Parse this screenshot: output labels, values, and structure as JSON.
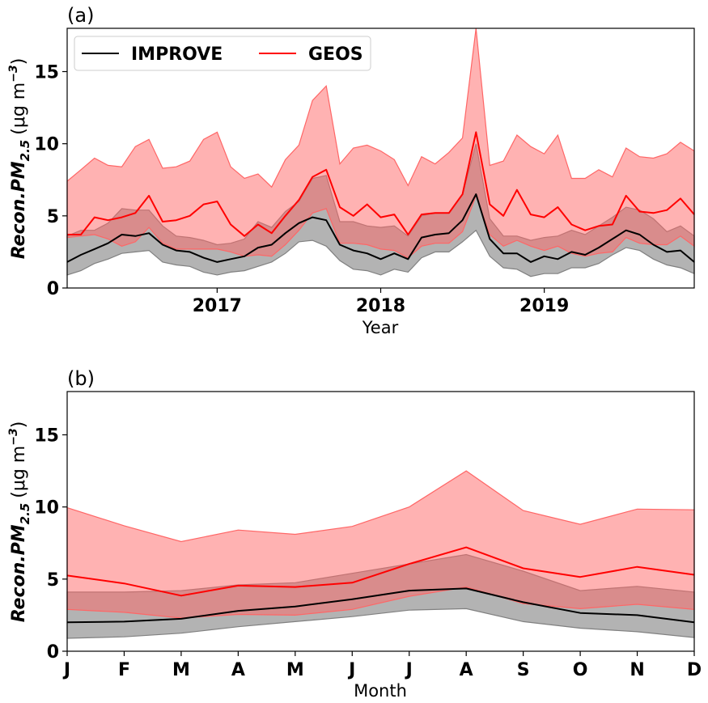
{
  "colors": {
    "improve": "#000000",
    "geos": "#ff0000",
    "improve_band": "#808080",
    "geos_band": "#ff6666"
  },
  "chart_data": [
    {
      "type": "line",
      "panel_label": "(a)",
      "xlabel": "Year",
      "ylabel_main": "Recon.PM",
      "ylabel_sub": "2.5",
      "ylabel_units_open": "(μg m",
      "ylabel_units_sup": "−3",
      "ylabel_units_close": ")",
      "ylim": [
        0,
        18
      ],
      "yticks": [
        0,
        5,
        10,
        15
      ],
      "xlim": [
        2016.083,
        2019.917
      ],
      "xticks": [
        2017,
        2018,
        2019
      ],
      "xtick_labels": [
        "2017",
        "2018",
        "2019"
      ],
      "legend": {
        "position": "top-left",
        "entries": [
          "IMPROVE",
          "GEOS"
        ]
      },
      "x": [
        2016.083,
        2016.167,
        2016.25,
        2016.333,
        2016.417,
        2016.5,
        2016.583,
        2016.667,
        2016.75,
        2016.833,
        2016.917,
        2017.0,
        2017.083,
        2017.167,
        2017.25,
        2017.333,
        2017.417,
        2017.5,
        2017.583,
        2017.667,
        2017.75,
        2017.833,
        2017.917,
        2018.0,
        2018.083,
        2018.167,
        2018.25,
        2018.333,
        2018.417,
        2018.5,
        2018.583,
        2018.667,
        2018.75,
        2018.833,
        2018.917,
        2019.0,
        2019.083,
        2019.167,
        2019.25,
        2019.333,
        2019.417,
        2019.5,
        2019.583,
        2019.667,
        2019.75,
        2019.833,
        2019.917
      ],
      "series": [
        {
          "name": "IMPROVE",
          "values": [
            1.8,
            2.3,
            2.7,
            3.1,
            3.7,
            3.6,
            3.8,
            3.0,
            2.6,
            2.5,
            2.1,
            1.8,
            2.0,
            2.2,
            2.8,
            3.0,
            3.8,
            4.5,
            4.9,
            4.7,
            3.0,
            2.6,
            2.4,
            2.0,
            2.4,
            2.0,
            3.5,
            3.7,
            3.8,
            4.7,
            6.5,
            3.4,
            2.4,
            2.4,
            1.8,
            2.2,
            2.0,
            2.5,
            2.3,
            2.8,
            3.4,
            4.0,
            3.7,
            3.0,
            2.5,
            2.6,
            1.8
          ],
          "lower": [
            0.9,
            1.2,
            1.7,
            2.0,
            2.4,
            2.5,
            2.6,
            1.8,
            1.6,
            1.5,
            1.1,
            0.9,
            1.1,
            1.2,
            1.5,
            1.8,
            2.4,
            3.2,
            3.3,
            2.9,
            1.9,
            1.3,
            1.2,
            0.9,
            1.3,
            1.1,
            2.1,
            2.5,
            2.5,
            3.2,
            4.0,
            2.2,
            1.4,
            1.3,
            0.8,
            1.0,
            1.0,
            1.4,
            1.4,
            1.7,
            2.3,
            2.8,
            2.6,
            2.0,
            1.6,
            1.4,
            1.0
          ],
          "upper": [
            3.6,
            4.0,
            4.0,
            4.5,
            5.5,
            5.4,
            5.4,
            4.3,
            3.6,
            3.5,
            3.3,
            3.0,
            3.1,
            3.4,
            4.6,
            4.2,
            5.3,
            6.0,
            7.6,
            7.8,
            4.6,
            4.6,
            4.3,
            4.2,
            4.3,
            3.6,
            5.0,
            5.2,
            5.2,
            6.5,
            10.0,
            4.8,
            3.6,
            3.6,
            3.3,
            3.5,
            3.6,
            4.0,
            3.7,
            4.3,
            4.9,
            5.6,
            5.4,
            4.8,
            3.9,
            4.3,
            3.6
          ]
        },
        {
          "name": "GEOS",
          "values": [
            3.7,
            3.7,
            4.9,
            4.7,
            4.9,
            5.2,
            6.4,
            4.6,
            4.7,
            5.0,
            5.8,
            6.0,
            4.4,
            3.6,
            4.4,
            3.8,
            5.0,
            6.1,
            7.7,
            8.2,
            5.6,
            5.0,
            5.8,
            4.9,
            5.1,
            3.7,
            5.1,
            5.2,
            5.2,
            6.5,
            10.8,
            5.8,
            5.0,
            6.8,
            5.1,
            4.9,
            5.6,
            4.4,
            4.0,
            4.3,
            4.4,
            6.4,
            5.3,
            5.2,
            5.4,
            6.2,
            5.1
          ],
          "lower": [
            3.5,
            3.6,
            3.7,
            3.4,
            2.9,
            3.2,
            4.2,
            3.1,
            2.7,
            2.7,
            2.7,
            2.7,
            2.5,
            2.2,
            2.3,
            2.2,
            3.0,
            4.0,
            5.2,
            5.5,
            3.1,
            3.1,
            3.0,
            2.7,
            2.6,
            2.1,
            2.9,
            3.1,
            3.1,
            3.9,
            6.4,
            3.7,
            2.9,
            3.3,
            2.9,
            2.6,
            2.9,
            2.4,
            2.2,
            2.4,
            2.5,
            3.5,
            3.1,
            3.0,
            3.0,
            3.6,
            2.9
          ],
          "upper": [
            7.4,
            8.2,
            9.0,
            8.5,
            8.4,
            9.8,
            10.3,
            8.3,
            8.4,
            8.8,
            10.3,
            10.8,
            8.4,
            7.6,
            7.9,
            7.0,
            8.9,
            9.9,
            13.0,
            14.0,
            8.6,
            9.7,
            9.9,
            9.5,
            8.9,
            7.1,
            9.1,
            8.6,
            9.4,
            10.4,
            18.0,
            8.5,
            8.8,
            10.6,
            9.8,
            9.3,
            10.6,
            7.6,
            7.6,
            8.2,
            7.7,
            9.7,
            9.1,
            9.0,
            9.3,
            10.1,
            9.5
          ]
        }
      ]
    },
    {
      "type": "line",
      "panel_label": "(b)",
      "xlabel": "Month",
      "ylabel_main": "Recon.PM",
      "ylabel_sub": "2.5",
      "ylabel_units_open": "(μg m",
      "ylabel_units_sup": "−3",
      "ylabel_units_close": ")",
      "ylim": [
        0,
        18
      ],
      "yticks": [
        0,
        5,
        10,
        15
      ],
      "categories": [
        "J",
        "F",
        "M",
        "A",
        "M",
        "J",
        "J",
        "A",
        "S",
        "O",
        "N",
        "D"
      ],
      "series": [
        {
          "name": "IMPROVE",
          "values": [
            2.0,
            2.05,
            2.25,
            2.8,
            3.1,
            3.6,
            4.2,
            4.35,
            3.4,
            2.65,
            2.5,
            2.0
          ],
          "lower": [
            0.9,
            1.0,
            1.25,
            1.7,
            2.05,
            2.4,
            2.85,
            2.95,
            2.05,
            1.6,
            1.35,
            0.95
          ],
          "upper": [
            4.1,
            4.1,
            4.2,
            4.6,
            4.75,
            5.4,
            6.05,
            6.7,
            5.55,
            4.2,
            4.5,
            4.1
          ]
        },
        {
          "name": "GEOS",
          "values": [
            5.25,
            4.7,
            3.85,
            4.55,
            4.45,
            4.75,
            6.05,
            7.2,
            5.75,
            5.15,
            5.85,
            5.3
          ],
          "lower": [
            2.9,
            2.7,
            2.3,
            2.55,
            2.5,
            2.9,
            3.8,
            4.45,
            3.3,
            2.95,
            3.25,
            2.9
          ],
          "upper": [
            9.95,
            8.7,
            7.6,
            8.4,
            8.1,
            8.65,
            10.0,
            12.5,
            9.75,
            8.8,
            9.85,
            9.8
          ]
        }
      ]
    }
  ]
}
